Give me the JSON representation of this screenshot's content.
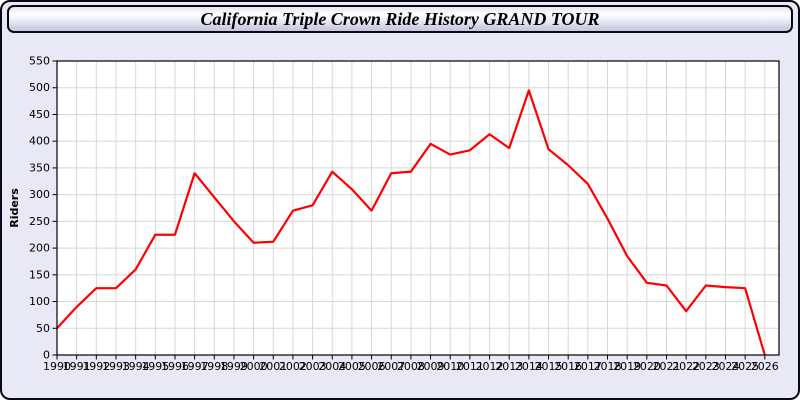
{
  "page": {
    "title": "California Triple Crown Ride History GRAND TOUR"
  },
  "colors": {
    "page_bg": "#e8e8f7",
    "plot_bg": "#ffffff",
    "grid": "#d8d8d8",
    "axis": "#000000",
    "line": "#ff0000"
  },
  "chart_data": {
    "type": "line",
    "title": "California Triple Crown Ride History GRAND TOUR",
    "xlabel": "",
    "ylabel": "Riders",
    "ylim": [
      0,
      550
    ],
    "ytick_step": 50,
    "grid": true,
    "legend": "none",
    "line_color": "#ff0000",
    "x": [
      1990,
      1991,
      1992,
      1993,
      1994,
      1995,
      1996,
      1997,
      1998,
      1999,
      2000,
      2001,
      2002,
      2003,
      2004,
      2005,
      2006,
      2007,
      2008,
      2009,
      2010,
      2011,
      2012,
      2013,
      2014,
      2015,
      2016,
      2017,
      2018,
      2019,
      2020,
      2021,
      2022,
      2023,
      2024,
      2025,
      2026
    ],
    "values": [
      50,
      90,
      125,
      125,
      160,
      225,
      225,
      340,
      295,
      250,
      210,
      212,
      270,
      280,
      343,
      310,
      270,
      340,
      343,
      395,
      375,
      383,
      413,
      387,
      495,
      385,
      355,
      320,
      255,
      185,
      135,
      130,
      82,
      130,
      127,
      125,
      0
    ]
  }
}
